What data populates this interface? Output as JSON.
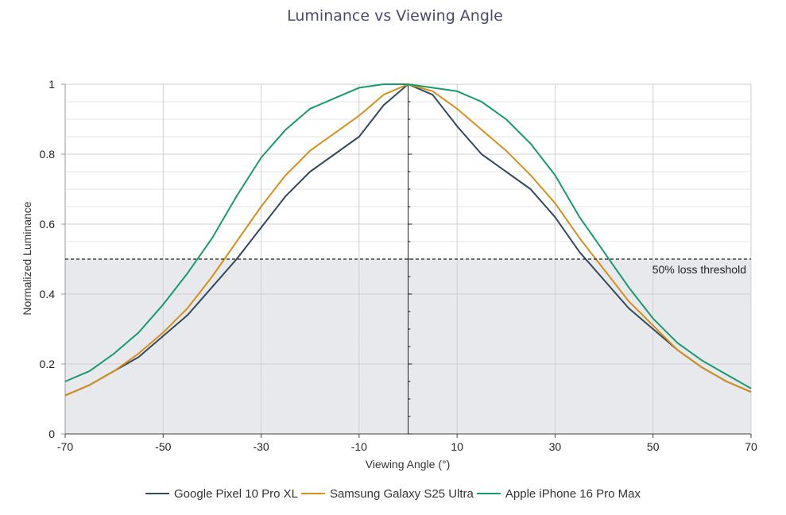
{
  "chart_data": {
    "type": "line",
    "title": "Luminance vs Viewing Angle",
    "xlabel": "Viewing Angle (°)",
    "ylabel": "Normalized Luminance",
    "xlim": [
      -70,
      70
    ],
    "ylim": [
      0,
      1
    ],
    "x_ticks": [
      -70,
      -50,
      -30,
      -10,
      10,
      30,
      50,
      70
    ],
    "y_ticks": [
      0,
      0.2,
      0.4,
      0.6,
      0.8,
      1
    ],
    "grid": true,
    "legend_position": "bottom",
    "x": [
      -70,
      -65,
      -60,
      -55,
      -50,
      -45,
      -40,
      -35,
      -30,
      -25,
      -20,
      -15,
      -10,
      -5,
      0,
      5,
      10,
      15,
      20,
      25,
      30,
      35,
      40,
      45,
      50,
      55,
      60,
      65,
      70
    ],
    "series": [
      {
        "name": "Google Pixel 10 Pro XL",
        "color": "#34495e",
        "values": [
          0.11,
          0.14,
          0.18,
          0.22,
          0.28,
          0.34,
          0.42,
          0.5,
          0.59,
          0.68,
          0.75,
          0.8,
          0.85,
          0.94,
          1.0,
          0.97,
          0.88,
          0.8,
          0.75,
          0.7,
          0.62,
          0.52,
          0.44,
          0.36,
          0.3,
          0.24,
          0.19,
          0.15,
          0.12
        ]
      },
      {
        "name": "Samsung Galaxy S25 Ultra",
        "color": "#d4901a",
        "values": [
          0.11,
          0.14,
          0.18,
          0.23,
          0.29,
          0.36,
          0.45,
          0.55,
          0.65,
          0.74,
          0.81,
          0.86,
          0.91,
          0.97,
          1.0,
          0.98,
          0.93,
          0.87,
          0.81,
          0.74,
          0.66,
          0.56,
          0.47,
          0.38,
          0.31,
          0.24,
          0.19,
          0.15,
          0.12
        ]
      },
      {
        "name": "Apple iPhone 16 Pro Max",
        "color": "#189a6e",
        "values": [
          0.15,
          0.18,
          0.23,
          0.29,
          0.37,
          0.46,
          0.56,
          0.68,
          0.79,
          0.87,
          0.93,
          0.96,
          0.99,
          1.0,
          1.0,
          0.99,
          0.98,
          0.95,
          0.9,
          0.83,
          0.74,
          0.62,
          0.52,
          0.42,
          0.33,
          0.26,
          0.21,
          0.17,
          0.13
        ]
      }
    ],
    "threshold": {
      "value": 0.5,
      "label": "50% loss threshold"
    },
    "shaded_region": {
      "from": 0,
      "to": 0.5,
      "color": "#e8e9ec"
    }
  }
}
